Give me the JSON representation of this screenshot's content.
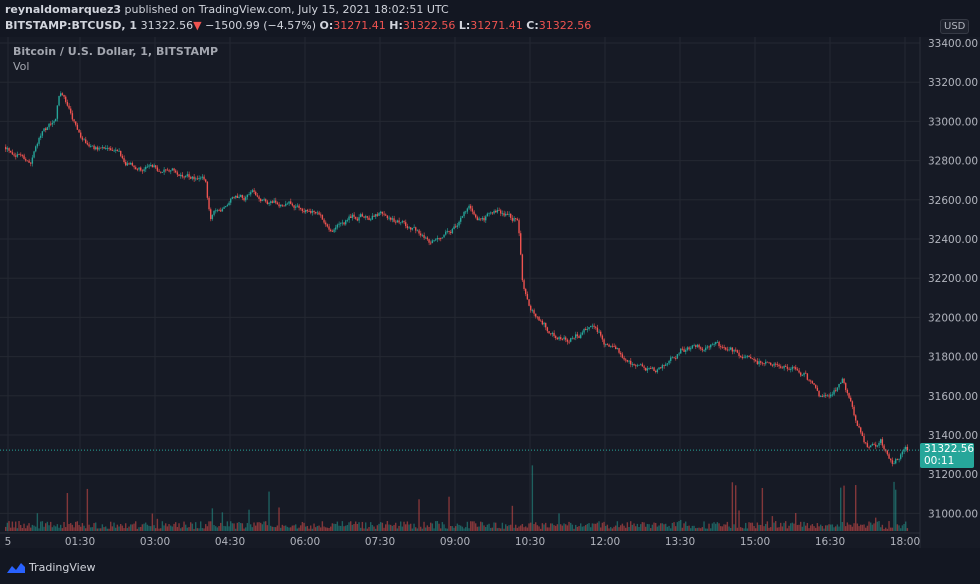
{
  "header": {
    "author": "reynaldomarquez3",
    "published": "published on TradingView.com, July 15, 2021 18:02:51 UTC",
    "symbol": "BITSTAMP:BTCUSD, 1",
    "last": "31322.56",
    "change": "−1500.99 (−4.57%)",
    "o_label": "O:",
    "o": "31271.41",
    "h_label": "H:",
    "h": "31322.56",
    "l_label": "L:",
    "l": "31271.41",
    "c_label": "C:",
    "c": "31322.56"
  },
  "legend": {
    "title": "Bitcoin / U.S. Dollar, 1, BITSTAMP",
    "vol": "Vol"
  },
  "currency": "USD",
  "price_label": {
    "price": "31322.56",
    "countdown": "00:11"
  },
  "brand": "TradingView",
  "colors": {
    "background": "#161a25",
    "up": "#26a69a",
    "down": "#ef5350",
    "grid": "#242832"
  },
  "chart_data": {
    "type": "candlestick",
    "title": "Bitcoin / U.S. Dollar, 1, BITSTAMP",
    "interval": "1 minute",
    "ylim": [
      30940,
      33420
    ],
    "xlim": [
      "00:00",
      "18:10"
    ],
    "y_ticks": [
      "31000.00",
      "31200.00",
      "31400.00",
      "31600.00",
      "31800.00",
      "32000.00",
      "32200.00",
      "32400.00",
      "32600.00",
      "32800.00",
      "33000.00",
      "33200.00",
      "33400.00"
    ],
    "x_ticks": [
      "5",
      "01:30",
      "03:00",
      "04:30",
      "06:00",
      "07:30",
      "09:00",
      "10:30",
      "12:00",
      "13:30",
      "15:00",
      "16:30",
      "18:00"
    ],
    "grid": true,
    "approx_close_path": [
      [
        "00:00",
        32870
      ],
      [
        "00:30",
        32800
      ],
      [
        "00:45",
        32980
      ],
      [
        "01:00",
        33000
      ],
      [
        "01:05",
        33160
      ],
      [
        "01:30",
        32900
      ],
      [
        "02:00",
        32850
      ],
      [
        "02:30",
        32780
      ],
      [
        "03:00",
        32750
      ],
      [
        "03:30",
        32730
      ],
      [
        "04:00",
        32680
      ],
      [
        "04:05",
        32500
      ],
      [
        "04:30",
        32600
      ],
      [
        "05:00",
        32620
      ],
      [
        "05:30",
        32570
      ],
      [
        "06:00",
        32570
      ],
      [
        "06:30",
        32470
      ],
      [
        "07:00",
        32520
      ],
      [
        "07:30",
        32520
      ],
      [
        "08:00",
        32470
      ],
      [
        "08:30",
        32395
      ],
      [
        "09:00",
        32470
      ],
      [
        "09:15",
        32570
      ],
      [
        "09:30",
        32520
      ],
      [
        "10:00",
        32520
      ],
      [
        "10:15",
        32500
      ],
      [
        "10:20",
        32190
      ],
      [
        "10:30",
        32040
      ],
      [
        "11:00",
        31910
      ],
      [
        "11:30",
        31910
      ],
      [
        "11:45",
        31950
      ],
      [
        "12:00",
        31860
      ],
      [
        "12:30",
        31780
      ],
      [
        "13:00",
        31705
      ],
      [
        "13:30",
        31830
      ],
      [
        "14:00",
        31860
      ],
      [
        "14:30",
        31830
      ],
      [
        "15:00",
        31780
      ],
      [
        "15:30",
        31760
      ],
      [
        "16:00",
        31705
      ],
      [
        "16:15",
        31580
      ],
      [
        "16:30",
        31600
      ],
      [
        "16:45",
        31680
      ],
      [
        "17:00",
        31475
      ],
      [
        "17:15",
        31320
      ],
      [
        "17:30",
        31370
      ],
      [
        "17:45",
        31220
      ],
      [
        "18:02",
        31322.56
      ]
    ],
    "last_price": 31322.56
  }
}
